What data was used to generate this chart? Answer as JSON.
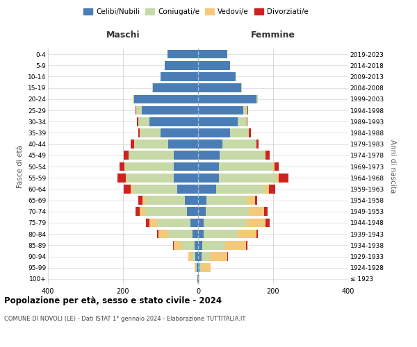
{
  "age_groups": [
    "100+",
    "95-99",
    "90-94",
    "85-89",
    "80-84",
    "75-79",
    "70-74",
    "65-69",
    "60-64",
    "55-59",
    "50-54",
    "45-49",
    "40-44",
    "35-39",
    "30-34",
    "25-29",
    "20-24",
    "15-19",
    "10-14",
    "5-9",
    "0-4"
  ],
  "birth_years": [
    "≤ 1923",
    "1924-1928",
    "1929-1933",
    "1934-1938",
    "1939-1943",
    "1944-1948",
    "1949-1953",
    "1954-1958",
    "1959-1963",
    "1964-1968",
    "1969-1973",
    "1974-1978",
    "1979-1983",
    "1984-1988",
    "1989-1993",
    "1994-1998",
    "1999-2003",
    "2004-2008",
    "2009-2013",
    "2014-2018",
    "2019-2023"
  ],
  "colors": {
    "celibi": "#4a7db5",
    "coniugati": "#c8d9a8",
    "vedovi": "#f5c97a",
    "divorziati": "#cc2222"
  },
  "maschi": {
    "celibi": [
      2,
      4,
      8,
      10,
      15,
      20,
      30,
      35,
      55,
      65,
      65,
      65,
      80,
      100,
      130,
      150,
      170,
      120,
      100,
      88,
      82
    ],
    "coniugati": [
      0,
      2,
      8,
      35,
      65,
      90,
      110,
      105,
      120,
      125,
      130,
      120,
      90,
      55,
      30,
      15,
      5,
      2,
      0,
      0,
      0
    ],
    "vedovi": [
      0,
      3,
      10,
      20,
      25,
      20,
      15,
      8,
      5,
      3,
      2,
      1,
      1,
      0,
      0,
      0,
      0,
      0,
      0,
      0,
      0
    ],
    "divorziati": [
      0,
      0,
      0,
      2,
      5,
      8,
      12,
      12,
      18,
      22,
      12,
      12,
      8,
      5,
      3,
      2,
      0,
      0,
      0,
      0,
      0
    ]
  },
  "femmine": {
    "celibi": [
      2,
      4,
      10,
      12,
      15,
      15,
      20,
      22,
      48,
      55,
      55,
      58,
      65,
      85,
      105,
      120,
      155,
      115,
      100,
      85,
      78
    ],
    "coniugati": [
      0,
      5,
      22,
      60,
      90,
      115,
      115,
      110,
      130,
      155,
      145,
      120,
      90,
      50,
      25,
      12,
      5,
      2,
      0,
      0,
      0
    ],
    "vedovi": [
      2,
      25,
      45,
      55,
      50,
      50,
      40,
      20,
      10,
      5,
      3,
      2,
      1,
      0,
      0,
      0,
      0,
      0,
      0,
      0,
      0
    ],
    "divorziati": [
      0,
      0,
      2,
      5,
      5,
      10,
      10,
      5,
      18,
      25,
      12,
      10,
      5,
      5,
      2,
      2,
      0,
      0,
      0,
      0,
      0
    ]
  },
  "xlim": 400,
  "title": "Popolazione per età, sesso e stato civile - 2024",
  "subtitle": "COMUNE DI NOVOLI (LE) - Dati ISTAT 1° gennaio 2024 - Elaborazione TUTTITALIA.IT",
  "ylabel": "Fasce di età",
  "ylabel_right": "Anni di nascita",
  "xlabel_left": "Maschi",
  "xlabel_right": "Femmine"
}
